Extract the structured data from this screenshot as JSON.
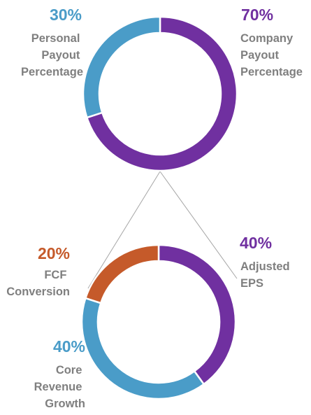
{
  "chart_data": [
    {
      "type": "pie",
      "variant": "donut",
      "categories": [
        "Company Payout Percentage",
        "Personal Payout Percentage"
      ],
      "values": [
        70,
        30
      ],
      "unit": "%",
      "colors": [
        "#7030a0",
        "#4a9cc8"
      ],
      "slices": [
        {
          "value_label": "70%",
          "label_lines": [
            "Company",
            "Payout",
            "Percentage"
          ],
          "color": "#7030a0"
        },
        {
          "value_label": "30%",
          "label_lines": [
            "Personal",
            "Payout",
            "Percentage"
          ],
          "color": "#4a9cc8"
        }
      ]
    },
    {
      "type": "pie",
      "variant": "donut",
      "breakdown_of": "Company Payout Percentage",
      "categories": [
        "Adjusted EPS",
        "Core Revenue Growth",
        "FCF Conversion"
      ],
      "values": [
        40,
        40,
        20
      ],
      "unit": "%",
      "colors": [
        "#7030a0",
        "#4a9cc8",
        "#c55a2a"
      ],
      "slices": [
        {
          "value_label": "40%",
          "label_lines": [
            "Adjusted",
            "EPS"
          ],
          "color": "#7030a0"
        },
        {
          "value_label": "40%",
          "label_lines": [
            "Core",
            "Revenue",
            "Growth"
          ],
          "color": "#4a9cc8"
        },
        {
          "value_label": "20%",
          "label_lines": [
            "FCF",
            "Conversion"
          ],
          "color": "#c55a2a"
        }
      ]
    }
  ]
}
